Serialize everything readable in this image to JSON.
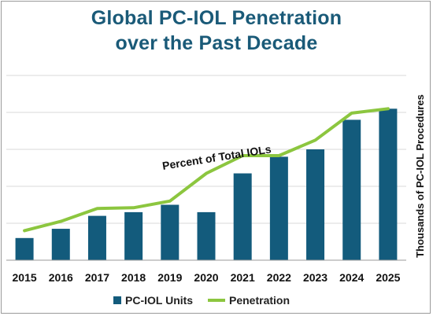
{
  "title_line1": "Global PC-IOL Penetration",
  "title_line2": "over the Past Decade",
  "chart_data": {
    "type": "bar",
    "categories": [
      "2015",
      "2016",
      "2017",
      "2018",
      "2019",
      "2020",
      "2021",
      "2022",
      "2023",
      "2024",
      "2025"
    ],
    "series": [
      {
        "name": "PC-IOL Units",
        "type": "bar",
        "color": "#135b7c",
        "values": [
          0.6,
          0.85,
          1.2,
          1.3,
          1.5,
          1.3,
          2.35,
          2.8,
          3.0,
          3.8,
          4.1
        ]
      },
      {
        "name": "Penetration",
        "type": "line",
        "color": "#8cc63f",
        "values": [
          0.8,
          1.05,
          1.4,
          1.42,
          1.6,
          2.35,
          2.83,
          2.83,
          3.25,
          3.98,
          4.1
        ]
      }
    ],
    "ylabel": "Thousands of PC-IOL Procedures",
    "ylim": [
      0,
      5
    ],
    "grid": true,
    "legend": "bottom",
    "annotation": "Percent of Total IOLs"
  }
}
